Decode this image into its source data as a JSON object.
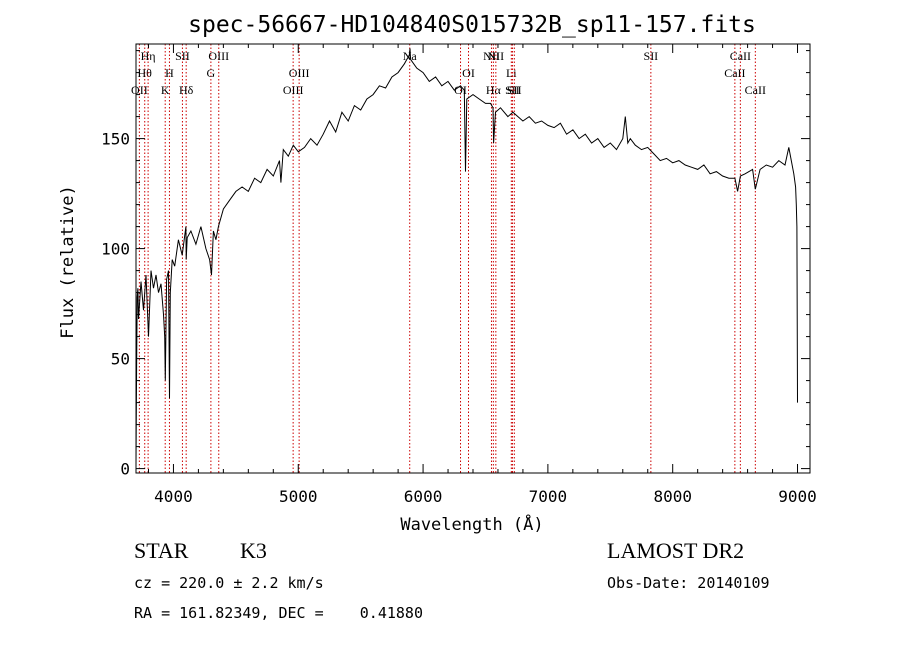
{
  "chart_data": {
    "type": "line",
    "title": "spec-56667-HD104840S015732B_sp11-157.fits",
    "xlabel": "Wavelength (Å)",
    "ylabel": "Flux (relative)",
    "xlim": [
      3700,
      9100
    ],
    "ylim": [
      -2,
      193
    ],
    "xticks": [
      4000,
      5000,
      6000,
      7000,
      8000,
      9000
    ],
    "xtick_labels": [
      "4000",
      "5000",
      "6000",
      "7000",
      "8000",
      "9000"
    ],
    "yticks": [
      0,
      50,
      100,
      150
    ],
    "ytick_labels": [
      "0",
      "50",
      "100",
      "150"
    ],
    "grid": false,
    "line_color": "#000000",
    "marker_line_color": "#cc0000",
    "series": [
      {
        "x": [
          3700,
          3705,
          3710,
          3715,
          3720,
          3740,
          3760,
          3780,
          3800,
          3820,
          3840,
          3860,
          3880,
          3900,
          3920,
          3930,
          3935,
          3945,
          3960,
          3968,
          3975,
          3990,
          4010,
          4040,
          4070,
          4100,
          4102,
          4110,
          4140,
          4180,
          4220,
          4260,
          4290,
          4305,
          4320,
          4340,
          4360,
          4400,
          4450,
          4500,
          4550,
          4600,
          4650,
          4700,
          4750,
          4800,
          4850,
          4861,
          4880,
          4920,
          4960,
          5000,
          5050,
          5100,
          5150,
          5200,
          5250,
          5300,
          5350,
          5400,
          5450,
          5500,
          5550,
          5600,
          5650,
          5700,
          5750,
          5800,
          5850,
          5890,
          5895,
          5900,
          5950,
          6000,
          6050,
          6100,
          6150,
          6200,
          6250,
          6300,
          6330,
          6340,
          6350,
          6400,
          6450,
          6500,
          6540,
          6560,
          6565,
          6580,
          6620,
          6680,
          6720,
          6760,
          6800,
          6850,
          6900,
          6950,
          7000,
          7050,
          7100,
          7150,
          7200,
          7250,
          7300,
          7350,
          7400,
          7450,
          7500,
          7550,
          7600,
          7620,
          7640,
          7660,
          7700,
          7750,
          7800,
          7850,
          7900,
          7950,
          8000,
          8050,
          8100,
          8150,
          8200,
          8250,
          8300,
          8350,
          8400,
          8450,
          8498,
          8520,
          8542,
          8580,
          8640,
          8662,
          8700,
          8750,
          8800,
          8850,
          8900,
          8930,
          8950,
          8970,
          8985,
          8990,
          8995,
          9000
        ],
        "y": [
          2,
          45,
          78,
          82,
          68,
          85,
          72,
          88,
          60,
          90,
          82,
          88,
          80,
          84,
          70,
          60,
          40,
          86,
          90,
          32,
          80,
          95,
          92,
          104,
          97,
          110,
          95,
          105,
          108,
          102,
          110,
          100,
          95,
          88,
          108,
          104,
          110,
          118,
          122,
          126,
          128,
          126,
          132,
          130,
          136,
          133,
          140,
          130,
          145,
          142,
          147,
          144,
          146,
          150,
          147,
          152,
          158,
          153,
          162,
          158,
          165,
          163,
          168,
          170,
          174,
          173,
          178,
          180,
          184,
          188,
          191,
          186,
          182,
          180,
          176,
          178,
          174,
          176,
          172,
          174,
          172,
          135,
          168,
          170,
          168,
          166,
          166,
          164,
          148,
          162,
          164,
          160,
          162,
          160,
          158,
          160,
          157,
          158,
          156,
          155,
          157,
          152,
          154,
          150,
          152,
          148,
          150,
          146,
          148,
          145,
          150,
          160,
          148,
          150,
          147,
          145,
          146,
          143,
          140,
          141,
          139,
          140,
          138,
          137,
          136,
          138,
          134,
          135,
          133,
          132,
          132,
          126,
          133,
          134,
          136,
          127,
          136,
          138,
          137,
          140,
          138,
          146,
          140,
          134,
          128,
          120,
          110,
          30
        ]
      }
    ],
    "line_markers": [
      {
        "x": 3727,
        "label": "OII",
        "row": 3
      },
      {
        "x": 3770,
        "label": "Hθ",
        "row": 2
      },
      {
        "x": 3797,
        "label": "Hη",
        "row": 1
      },
      {
        "x": 3934,
        "label": "K",
        "row": 3
      },
      {
        "x": 3968,
        "label": "H",
        "row": 2
      },
      {
        "x": 4072,
        "label": "SII",
        "row": 1
      },
      {
        "x": 4102,
        "label": "Hδ",
        "row": 3
      },
      {
        "x": 4300,
        "label": "G",
        "row": 2
      },
      {
        "x": 4363,
        "label": "OIII",
        "row": 1
      },
      {
        "x": 4959,
        "label": "OIII",
        "row": 3
      },
      {
        "x": 5007,
        "label": "OIII",
        "row": 2
      },
      {
        "x": 5893,
        "label": "Na",
        "row": 1
      },
      {
        "x": 6300,
        "label": "OI",
        "row": 3
      },
      {
        "x": 6364,
        "label": "OI",
        "row": 2
      },
      {
        "x": 6548,
        "label": "NII",
        "row": 1
      },
      {
        "x": 6563,
        "label": "Hα",
        "row": 3
      },
      {
        "x": 6583,
        "label": "NII",
        "row": 1
      },
      {
        "x": 6707,
        "label": "Li",
        "row": 2
      },
      {
        "x": 6716,
        "label": "SII",
        "row": 3
      },
      {
        "x": 6731,
        "label": "SII",
        "row": 3
      },
      {
        "x": 7825,
        "label": "SII",
        "row": 1
      },
      {
        "x": 8498,
        "label": "CaII",
        "row": 2
      },
      {
        "x": 8542,
        "label": "CaII",
        "row": 1
      },
      {
        "x": 8662,
        "label": "CaII",
        "row": 3
      }
    ]
  },
  "info": {
    "class_label": "STAR",
    "subclass_label": "K3",
    "survey": "LAMOST DR2",
    "cz": "cz = 220.0 ± 2.2 km/s",
    "obs_date": "Obs-Date: 20140109",
    "coords": "RA = 161.82349, DEC =    0.41880"
  }
}
